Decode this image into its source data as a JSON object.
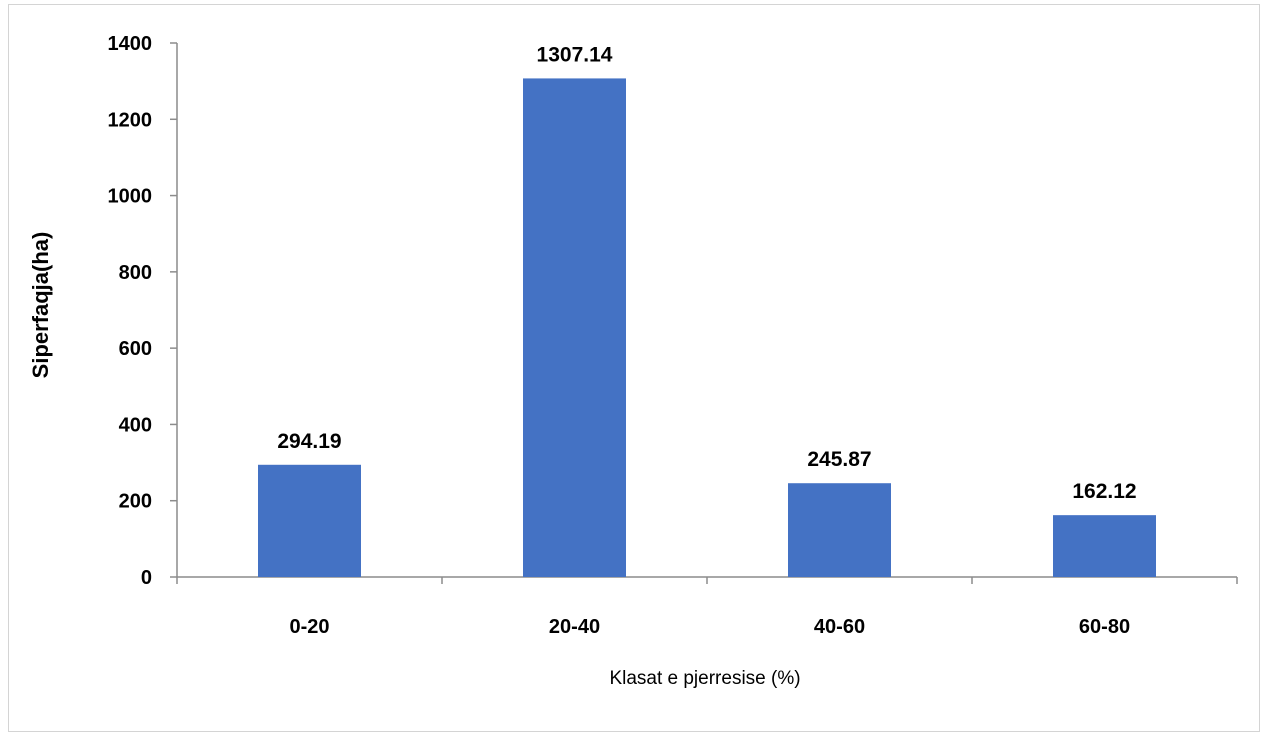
{
  "chart_data": {
    "type": "bar",
    "categories": [
      "0-20",
      "20-40",
      "40-60",
      "60-80"
    ],
    "values": [
      294.19,
      1307.14,
      245.87,
      162.12
    ],
    "data_labels": [
      "294.19",
      "1307.14",
      "245.87",
      "162.12"
    ],
    "xlabel": "Klasat e pjerresise (%)",
    "ylabel": "Siperfaqja(ha)",
    "ylim": [
      0,
      1400
    ],
    "yticks": [
      0,
      200,
      400,
      600,
      800,
      1000,
      1200,
      1400
    ],
    "grid": false,
    "legend": "none",
    "bar_color": "#4472C4"
  }
}
